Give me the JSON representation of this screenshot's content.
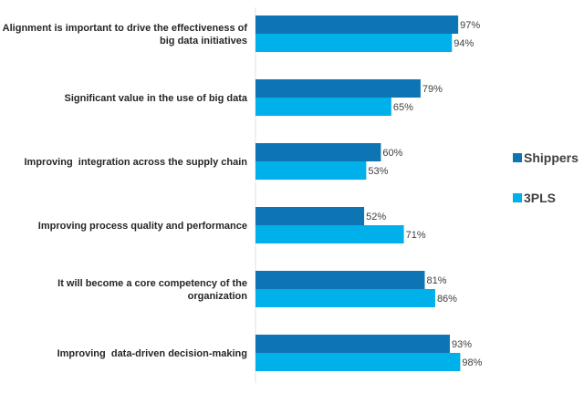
{
  "chart_data": {
    "type": "bar",
    "orientation": "horizontal",
    "categories": [
      "Alignment is important to drive the effectiveness of big data initiatives",
      "Significant value in the use of big data",
      "Improving  integration across the supply chain",
      "Improving process quality and performance",
      "It will become a core competency of the organization",
      "Improving  data-driven decision-making"
    ],
    "category_lines": [
      [
        "Alignment is important to drive the effectiveness of",
        "big data initiatives"
      ],
      [
        "Significant value in the use of big data"
      ],
      [
        "Improving  integration across the supply chain"
      ],
      [
        "Improving process quality and performance"
      ],
      [
        "It will become a core competency of the",
        "organization"
      ],
      [
        "Improving  data-driven decision-making"
      ]
    ],
    "series": [
      {
        "name": "Shippers",
        "color": "#0e75b4",
        "values": [
          97,
          79,
          60,
          52,
          81,
          93
        ],
        "labels": [
          "97%",
          "79%",
          "60%",
          "52%",
          "81%",
          "93%"
        ]
      },
      {
        "name": "3PLS",
        "color": "#00b0ea",
        "values": [
          94,
          65,
          53,
          71,
          86,
          98
        ],
        "labels": [
          "94%",
          "65%",
          "53%",
          "71%",
          "86%",
          "98%"
        ]
      }
    ],
    "xlim": [
      0,
      100
    ],
    "grid": false,
    "legend": "right",
    "title": "",
    "xlabel": "",
    "ylabel": ""
  }
}
